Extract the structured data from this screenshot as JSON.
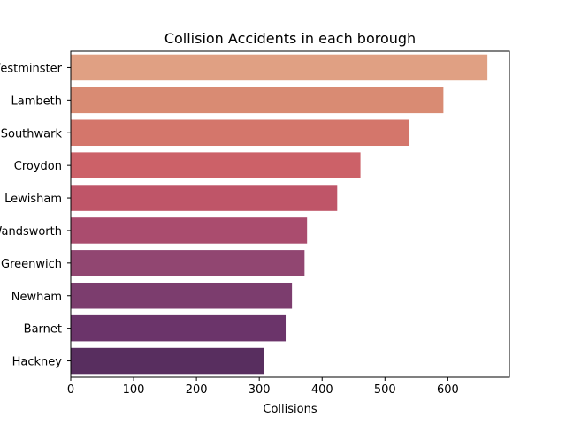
{
  "chart_data": {
    "type": "bar",
    "orientation": "horizontal",
    "title": "Collision Accidents in each borough",
    "xlabel": "Collisions",
    "ylabel": "",
    "xlim": [
      0,
      698
    ],
    "xticks": [
      0,
      100,
      200,
      300,
      400,
      500,
      600
    ],
    "grid": false,
    "categories": [
      "Westminster",
      "Lambeth",
      "Southwark",
      "Croydon",
      "Lewisham",
      "Wandsworth",
      "Greenwich",
      "Newham",
      "Barnet",
      "Hackney"
    ],
    "values": [
      663,
      593,
      539,
      461,
      424,
      376,
      372,
      352,
      342,
      307
    ],
    "colors": [
      "#e0a083",
      "#d98b73",
      "#d4766b",
      "#cc6168",
      "#bf5568",
      "#aa4c6e",
      "#914671",
      "#7c3d6e",
      "#6b346a",
      "#582e5f"
    ]
  }
}
